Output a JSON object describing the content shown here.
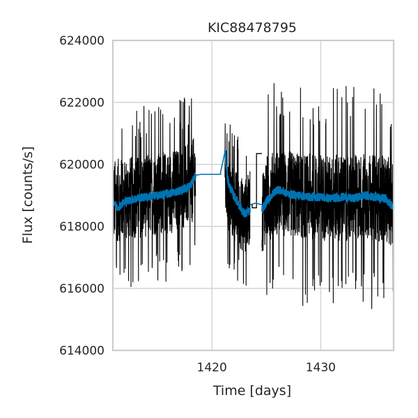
{
  "chart_data": {
    "type": "line",
    "title": "KIC88478795",
    "xlabel": "Time [days]",
    "ylabel": "Flux [counts/s]",
    "xlim": [
      1410.9,
      1436.7
    ],
    "ylim": [
      614000,
      624000
    ],
    "xticks": [
      1420,
      1430
    ],
    "xtick_labels": [
      "1420",
      "1430"
    ],
    "yticks": [
      614000,
      616000,
      618000,
      620000,
      622000,
      624000
    ],
    "ytick_labels": [
      "614000",
      "616000",
      "618000",
      "620000",
      "622000",
      "624000"
    ],
    "grid": true,
    "legend": "none",
    "segments": [
      {
        "x0": 1410.9,
        "x1": 1418.5,
        "amp": 1350,
        "spike": 2900
      },
      {
        "x0": 1421.2,
        "x1": 1423.5,
        "amp": 1200,
        "spike": 2400
      },
      {
        "x0": 1424.6,
        "x1": 1436.7,
        "amp": 1400,
        "spike": 3600
      }
    ],
    "series": [
      {
        "kind": "raw",
        "color": "#000000",
        "x": [
          1410.9,
          1412.0,
          1413.0,
          1414.0,
          1415.0,
          1416.0,
          1417.0,
          1418.0,
          1418.5,
          1421.2,
          1421.5,
          1422.0,
          1422.5,
          1423.0,
          1423.5,
          1424.6,
          1425.0,
          1426.0,
          1427.0,
          1428.0,
          1429.0,
          1430.0,
          1431.0,
          1432.0,
          1433.0,
          1434.0,
          1435.0,
          1436.0,
          1436.7
        ],
        "y": [
          618800,
          618900,
          618950,
          619000,
          619050,
          619100,
          619200,
          619350,
          619600,
          619500,
          619000,
          618700,
          618500,
          618300,
          618600,
          618500,
          618900,
          619100,
          619050,
          619000,
          618950,
          618950,
          618900,
          618950,
          618900,
          619000,
          618900,
          618900,
          618700
        ]
      },
      {
        "kind": "smoothed",
        "color": "#0072b2",
        "x": [
          1410.9,
          1411.3,
          1412.0,
          1413.0,
          1414.0,
          1415.0,
          1416.0,
          1417.0,
          1418.0,
          1418.5,
          1421.2,
          1421.5,
          1422.0,
          1422.5,
          1423.0,
          1423.5,
          1424.6,
          1425.0,
          1426.0,
          1427.0,
          1428.0,
          1429.0,
          1430.0,
          1431.0,
          1432.0,
          1433.0,
          1434.0,
          1435.0,
          1436.0,
          1436.7
        ],
        "y": [
          618850,
          618600,
          618800,
          618900,
          618950,
          619000,
          619050,
          619150,
          619300,
          619650,
          620400,
          619400,
          619000,
          618700,
          618400,
          618500,
          618500,
          618800,
          619200,
          619050,
          619000,
          618950,
          618950,
          618900,
          618950,
          618900,
          619000,
          618950,
          618900,
          618600
        ]
      },
      {
        "kind": "gap-steps-blue",
        "color": "#0072b2",
        "x": [
          1418.5,
          1419.0,
          1420.8,
          1420.8,
          1421.2
        ],
        "y": [
          619650,
          619680,
          619680,
          619750,
          620400
        ]
      },
      {
        "kind": "gap-steps-black",
        "color": "#000000",
        "x": [
          1423.5,
          1423.7,
          1423.7,
          1424.1,
          1424.1,
          1424.6
        ],
        "y": [
          618700,
          618700,
          618600,
          618600,
          620350,
          620350
        ]
      },
      {
        "kind": "gap-steps-blue-2",
        "color": "#0072b2",
        "x": [
          1423.5,
          1424.0,
          1424.6
        ],
        "y": [
          618700,
          618750,
          618700
        ]
      }
    ]
  }
}
